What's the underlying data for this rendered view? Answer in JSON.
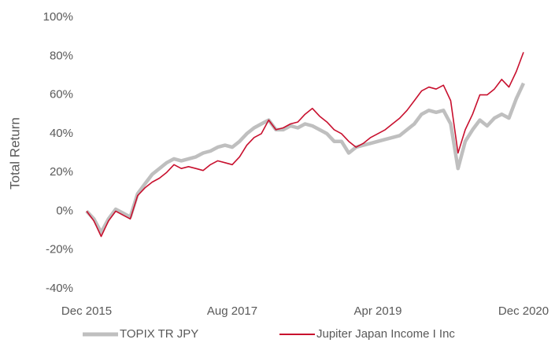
{
  "chart_data": {
    "type": "line",
    "y_label": "Total Return",
    "x": [
      "2015-12",
      "2016-01",
      "2016-02",
      "2016-03",
      "2016-04",
      "2016-05",
      "2016-06",
      "2016-07",
      "2016-08",
      "2016-09",
      "2016-10",
      "2016-11",
      "2016-12",
      "2017-01",
      "2017-02",
      "2017-03",
      "2017-04",
      "2017-05",
      "2017-06",
      "2017-07",
      "2017-08",
      "2017-09",
      "2017-10",
      "2017-11",
      "2017-12",
      "2018-01",
      "2018-02",
      "2018-03",
      "2018-04",
      "2018-05",
      "2018-06",
      "2018-07",
      "2018-08",
      "2018-09",
      "2018-10",
      "2018-11",
      "2018-12",
      "2019-01",
      "2019-02",
      "2019-03",
      "2019-04",
      "2019-05",
      "2019-06",
      "2019-07",
      "2019-08",
      "2019-09",
      "2019-10",
      "2019-11",
      "2019-12",
      "2020-01",
      "2020-02",
      "2020-03",
      "2020-04",
      "2020-05",
      "2020-06",
      "2020-07",
      "2020-08",
      "2020-09",
      "2020-10",
      "2020-11",
      "2020-12"
    ],
    "series": [
      {
        "name": "TOPIX TR JPY",
        "color": "#bfbfbf",
        "values": [
          0,
          -4,
          -11,
          -4,
          1,
          -1,
          -3,
          9,
          14,
          19,
          22,
          25,
          27,
          26,
          27,
          28,
          30,
          31,
          33,
          34,
          33,
          36,
          40,
          43,
          45,
          47,
          42,
          42,
          44,
          43,
          45,
          44,
          42,
          40,
          36,
          36,
          30,
          33,
          34,
          35,
          36,
          37,
          38,
          39,
          42,
          45,
          50,
          52,
          51,
          52,
          45,
          22,
          36,
          42,
          47,
          44,
          48,
          50,
          48,
          58,
          66
        ]
      },
      {
        "name": "Jupiter Japan Income I Inc",
        "color": "#c8102e",
        "values": [
          0,
          -5,
          -13,
          -5,
          0,
          -2,
          -4,
          8,
          12,
          15,
          17,
          20,
          24,
          22,
          23,
          22,
          21,
          24,
          26,
          25,
          24,
          28,
          34,
          38,
          40,
          47,
          42,
          43,
          45,
          46,
          50,
          53,
          49,
          46,
          42,
          40,
          36,
          33,
          35,
          38,
          40,
          42,
          45,
          48,
          52,
          57,
          62,
          64,
          63,
          65,
          57,
          30,
          42,
          50,
          60,
          60,
          63,
          68,
          64,
          72,
          82
        ]
      }
    ],
    "xticks": [
      {
        "value": "2015-12",
        "label": "Dec 2015"
      },
      {
        "value": "2017-08",
        "label": "Aug 2017"
      },
      {
        "value": "2019-04",
        "label": "Apr 2019"
      },
      {
        "value": "2020-12",
        "label": "Dec 2020"
      }
    ],
    "ylim": [
      -40,
      100
    ],
    "yticks": [
      {
        "value": -40,
        "label": "-40%"
      },
      {
        "value": -20,
        "label": "-20%"
      },
      {
        "value": 0,
        "label": "0%"
      },
      {
        "value": 20,
        "label": "20%"
      },
      {
        "value": 40,
        "label": "40%"
      },
      {
        "value": 60,
        "label": "60%"
      },
      {
        "value": 80,
        "label": "80%"
      },
      {
        "value": 100,
        "label": "100%"
      }
    ],
    "grid": false
  }
}
